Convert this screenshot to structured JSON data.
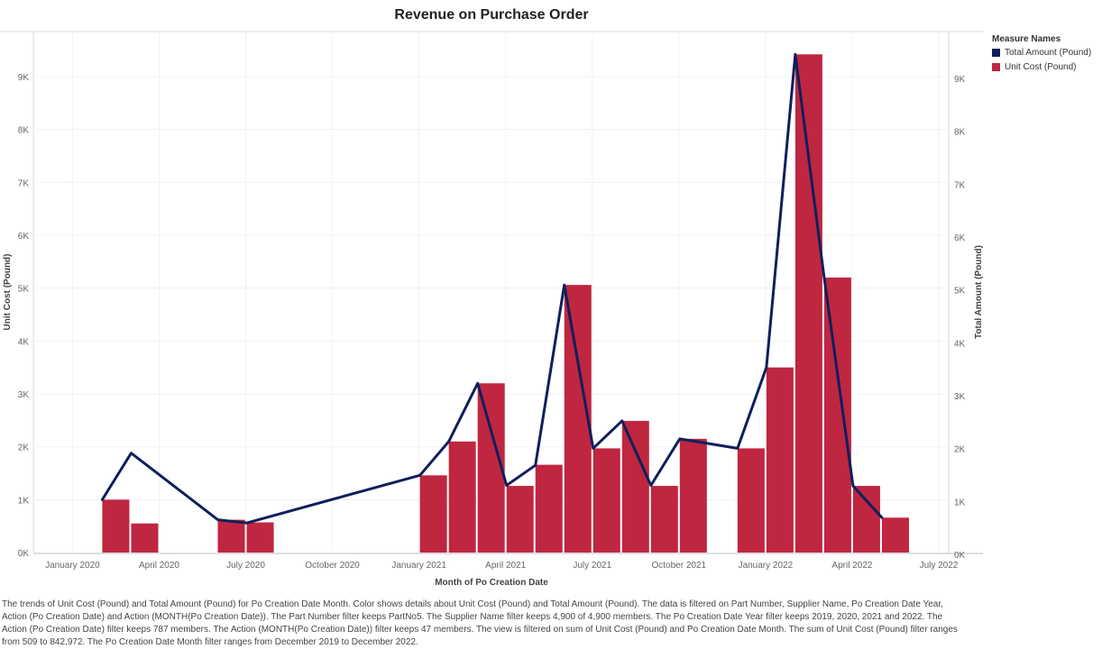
{
  "chart_data": {
    "type": "bar+line",
    "title": "Revenue on Purchase Order",
    "xlabel": "Month of Po Creation Date",
    "ylabel_left": "Unit Cost (Pound)",
    "ylabel_right": "Total Amount (Pound)",
    "ylim": [
      0,
      9800
    ],
    "yticks": [
      0,
      1000,
      2000,
      3000,
      4000,
      5000,
      6000,
      7000,
      8000,
      9000
    ],
    "ytick_labels": [
      "0K",
      "1K",
      "2K",
      "3K",
      "4K",
      "5K",
      "6K",
      "7K",
      "8K",
      "9K"
    ],
    "xlim": [
      "2019-12",
      "2022-07"
    ],
    "xticks": [
      {
        "month": "2020-01",
        "label": "January 2020"
      },
      {
        "month": "2020-04",
        "label": "April 2020"
      },
      {
        "month": "2020-07",
        "label": "July 2020"
      },
      {
        "month": "2020-10",
        "label": "October 2020"
      },
      {
        "month": "2021-01",
        "label": "January 2021"
      },
      {
        "month": "2021-04",
        "label": "April 2021"
      },
      {
        "month": "2021-07",
        "label": "July 2021"
      },
      {
        "month": "2021-10",
        "label": "October 2021"
      },
      {
        "month": "2022-01",
        "label": "January 2022"
      },
      {
        "month": "2022-04",
        "label": "April 2022"
      },
      {
        "month": "2022-07",
        "label": "July 2022"
      }
    ],
    "grid": true,
    "legend_position": "top-right",
    "legend_title": "Measure Names",
    "series": [
      {
        "name": "Total Amount (Pound)",
        "kind": "line",
        "color": "#0f1f5c",
        "points": [
          {
            "month": "2020-02",
            "value": 1000
          },
          {
            "month": "2020-03",
            "value": 1880
          },
          {
            "month": "2020-06",
            "value": 620
          },
          {
            "month": "2020-07",
            "value": 560
          },
          {
            "month": "2021-01",
            "value": 1460
          },
          {
            "month": "2021-02",
            "value": 2100
          },
          {
            "month": "2021-03",
            "value": 3200
          },
          {
            "month": "2021-04",
            "value": 1270
          },
          {
            "month": "2021-05",
            "value": 1650
          },
          {
            "month": "2021-06",
            "value": 5060
          },
          {
            "month": "2021-07",
            "value": 1970
          },
          {
            "month": "2021-08",
            "value": 2490
          },
          {
            "month": "2021-09",
            "value": 1270
          },
          {
            "month": "2021-10",
            "value": 2150
          },
          {
            "month": "2021-12",
            "value": 1970
          },
          {
            "month": "2022-01",
            "value": 3500
          },
          {
            "month": "2022-02",
            "value": 9420
          },
          {
            "month": "2022-03",
            "value": 5200
          },
          {
            "month": "2022-04",
            "value": 1260
          },
          {
            "month": "2022-05",
            "value": 660
          }
        ]
      },
      {
        "name": "Unit Cost (Pound)",
        "kind": "bar",
        "color": "#bf2640",
        "points": [
          {
            "month": "2020-02",
            "value": 1000
          },
          {
            "month": "2020-03",
            "value": 550
          },
          {
            "month": "2020-06",
            "value": 620
          },
          {
            "month": "2020-07",
            "value": 570
          },
          {
            "month": "2021-01",
            "value": 1460
          },
          {
            "month": "2021-02",
            "value": 2100
          },
          {
            "month": "2021-03",
            "value": 3200
          },
          {
            "month": "2021-04",
            "value": 1260
          },
          {
            "month": "2021-05",
            "value": 1660
          },
          {
            "month": "2021-06",
            "value": 5060
          },
          {
            "month": "2021-07",
            "value": 1970
          },
          {
            "month": "2021-08",
            "value": 2490
          },
          {
            "month": "2021-09",
            "value": 1260
          },
          {
            "month": "2021-10",
            "value": 2150
          },
          {
            "month": "2021-12",
            "value": 1970
          },
          {
            "month": "2022-01",
            "value": 3500
          },
          {
            "month": "2022-02",
            "value": 9420
          },
          {
            "month": "2022-03",
            "value": 5200
          },
          {
            "month": "2022-04",
            "value": 1260
          },
          {
            "month": "2022-05",
            "value": 660
          }
        ]
      }
    ]
  },
  "caption": "The trends of Unit Cost (Pound) and Total Amount (Pound) for Po Creation Date Month.  Color shows details about Unit Cost (Pound) and Total Amount (Pound). The data is filtered on Part Number, Supplier Name, Po Creation Date Year, Action (Po Creation Date) and Action (MONTH(Po Creation Date)). The Part Number filter keeps PartNo5. The Supplier Name filter keeps 4,900 of 4,900 members. The Po Creation Date Year filter keeps 2019, 2020, 2021 and 2022. The Action (Po Creation Date) filter keeps 787 members. The Action (MONTH(Po Creation Date)) filter keeps 47 members. The view is filtered on sum of Unit Cost (Pound) and Po Creation Date Month. The sum of Unit Cost (Pound) filter ranges from 509 to 842,972. The Po Creation Date Month filter ranges from December 2019 to December 2022."
}
